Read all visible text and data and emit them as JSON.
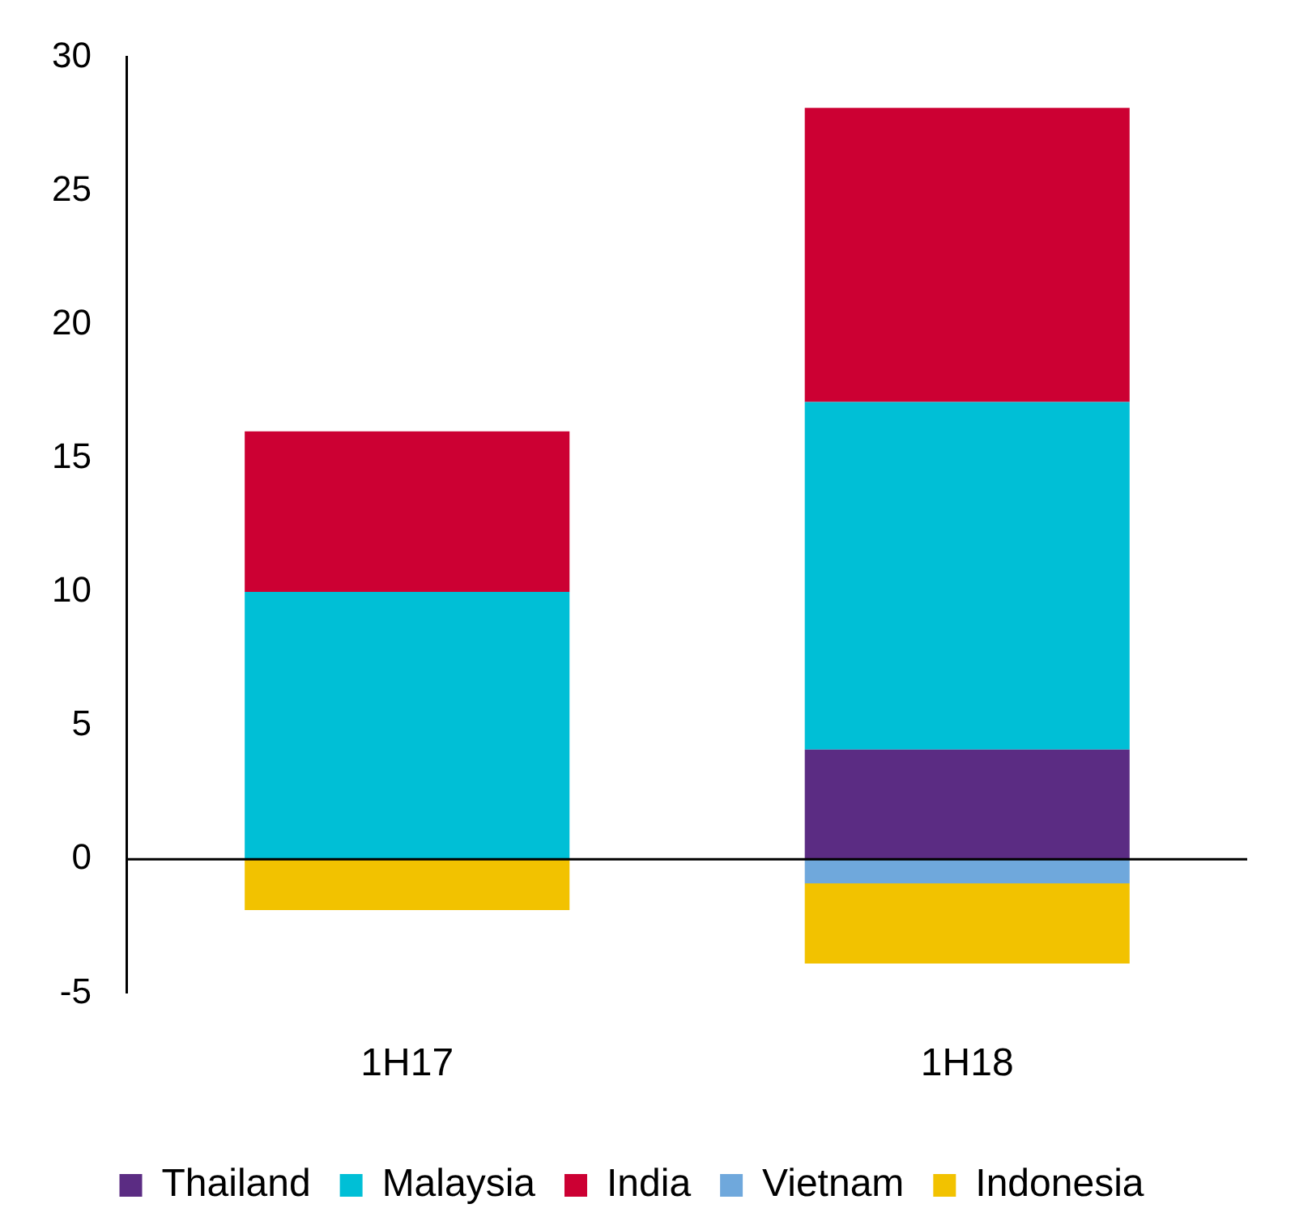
{
  "chart_data": {
    "type": "bar",
    "stacked": true,
    "categories": [
      "1H17",
      "1H18"
    ],
    "series": [
      {
        "name": "Thailand",
        "color": "#5b2c83",
        "values": [
          null,
          4.1
        ]
      },
      {
        "name": "Malaysia",
        "color": "#00bfd6",
        "values": [
          10,
          13
        ]
      },
      {
        "name": "India",
        "color": "#cc0033",
        "values": [
          6,
          11
        ]
      },
      {
        "name": "Vietnam",
        "color": "#6fa8dc",
        "values": [
          null,
          -0.9
        ]
      },
      {
        "name": "Indonesia",
        "color": "#f2c200",
        "values": [
          -1.9,
          -3
        ]
      }
    ],
    "ylim": [
      -5,
      30
    ],
    "yticks": [
      -5,
      0,
      5,
      10,
      15,
      20,
      25,
      30
    ],
    "grid": false,
    "ref_lines": [
      {
        "axis": "y",
        "value": 0,
        "color": "#000000"
      }
    ],
    "legend": "bottom"
  }
}
